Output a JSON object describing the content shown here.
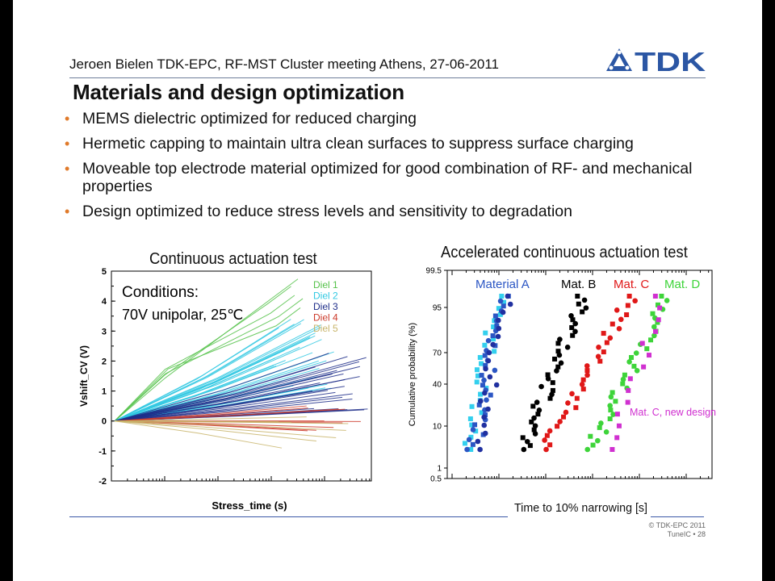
{
  "header": {
    "text": "Jeroen Bielen TDK-EPC, RF-MST Cluster meeting Athens, 27-06-2011",
    "logo_text": "TDK",
    "logo_color": "#2b56a4"
  },
  "title": "Materials and design optimization",
  "bullets": [
    {
      "text": "MEMS dielectric optimized for reduced charging"
    },
    {
      "text": "Hermetic capping to maintain ultra clean surfaces to suppress surface charging"
    },
    {
      "text": "Moveable top electrode material optimized for good combination of RF- and mechanical properties"
    },
    {
      "text": "Design optimized to reduce stress levels and sensitivity to degradation"
    }
  ],
  "bullet_color": "#e07a2a",
  "footer": {
    "line1": "© TDK-EPC 2011",
    "line2": "TuneIC • 28"
  },
  "chart_data": [
    {
      "type": "line",
      "title": "Continuous actuation test",
      "xlabel": "Stress_time (s)",
      "ylabel": "Vshift_CV (V)",
      "ylim": [
        -2,
        5
      ],
      "yticks": [
        "5",
        "4",
        "3",
        "2",
        "1",
        "0",
        "-1",
        "-2"
      ],
      "xscale": "log",
      "annotation": {
        "line1": "Conditions:",
        "line2": "70V unipolar, 25℃"
      },
      "legend_position": "top-right",
      "series": [
        {
          "name": "Diel 1",
          "color": "#55c24a"
        },
        {
          "name": "Diel 2",
          "color": "#30c8e2"
        },
        {
          "name": "Diel 3",
          "color": "#1f2e8a"
        },
        {
          "name": "Diel 4",
          "color": "#cc3a2a"
        },
        {
          "name": "Diel 5",
          "color": "#c8b46a"
        }
      ]
    },
    {
      "type": "scatter",
      "title": "Accelerated continuous actuation test",
      "xlabel": "Time to 10% narrowing [s]",
      "ylabel": "Cumulative probability (%)",
      "yticks": [
        "99.5",
        "95",
        "70",
        "40",
        "10",
        "1",
        "0.5"
      ],
      "xscale": "log",
      "yscale": "probability",
      "series": [
        {
          "name": "Material A",
          "color": "#2b56c4"
        },
        {
          "name": "Mat. B",
          "color": "#000000"
        },
        {
          "name": "Mat. C",
          "color": "#e01818"
        },
        {
          "name": "Mat. D",
          "color": "#3ed43a"
        },
        {
          "name": "Mat. C, new design",
          "color": "#d030d0"
        }
      ]
    }
  ]
}
